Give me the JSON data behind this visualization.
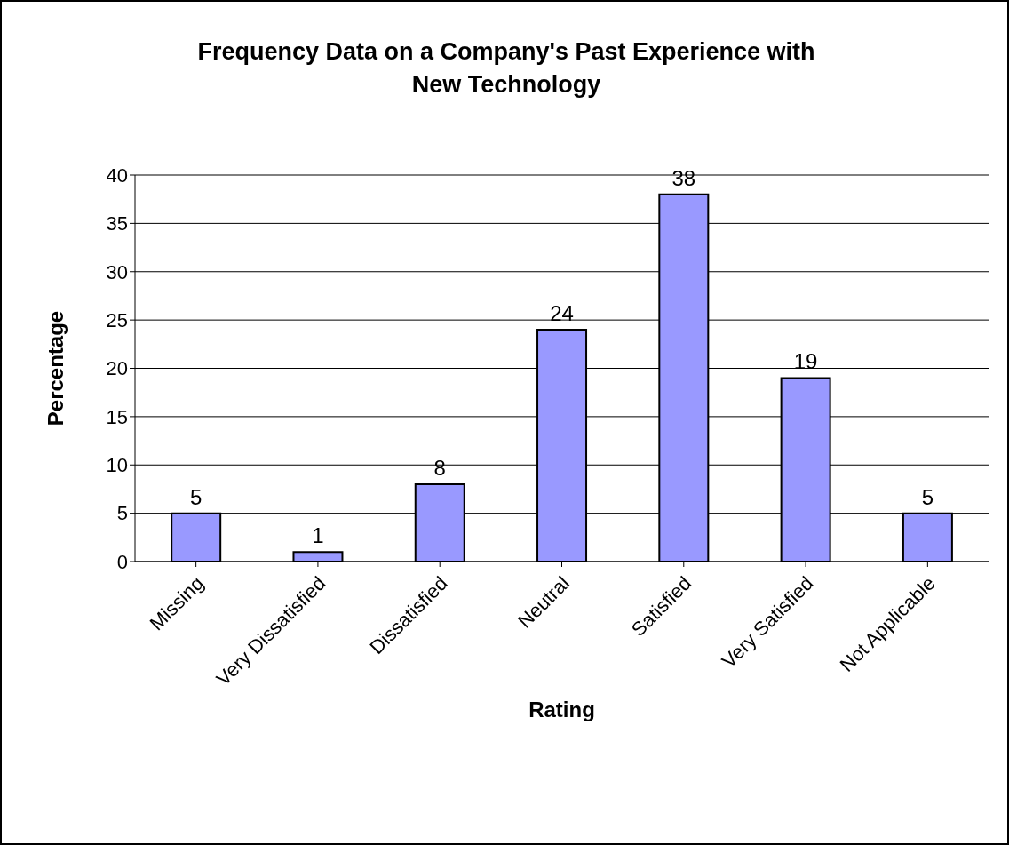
{
  "chart_data": {
    "type": "bar",
    "title": "Frequency Data on a Company's Past Experience with New Technology",
    "xlabel": "Rating",
    "ylabel": "Percentage",
    "categories": [
      "Missing",
      "Very Dissatisfied",
      "Dissatisfied",
      "Neutral",
      "Satisfied",
      "Very Satisfied",
      "Not Applicable"
    ],
    "values": [
      5,
      1,
      8,
      24,
      38,
      19,
      5
    ],
    "color": "#9999ff",
    "ylim": [
      0,
      40
    ],
    "yticks": [
      0,
      5,
      10,
      15,
      20,
      25,
      30,
      35,
      40
    ],
    "grid": "y",
    "data_labels": true
  }
}
